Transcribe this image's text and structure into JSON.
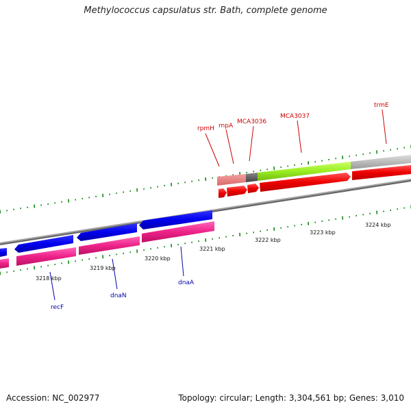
{
  "title": "Methylococcus capsulatus str. Bath, complete genome",
  "footer": {
    "accession": "Accession: NC_002977",
    "topology": "Topology: circular; Length: 3,304,561 bp; Genes: 3,010"
  },
  "kbp_labels": [
    "3218 kbp",
    "3219 kbp",
    "3220 kbp",
    "3221 kbp",
    "3222 kbp",
    "3223 kbp",
    "3224 kbp"
  ],
  "genes_top": [
    "rpmH",
    "rnpA",
    "MCA3036",
    "MCA3037",
    "trmE"
  ],
  "genes_bottom": [
    "recF",
    "dnaN",
    "dnaA"
  ],
  "colors": {
    "top_label": "#cc0000",
    "bottom_label": "#0000aa",
    "forward_cds": "#ff0000",
    "reverse_cds": "#0000ee",
    "reverse_secondary": "#ee2288",
    "highlight_green": "#99ee22",
    "grey_segment": "#bbbbbb",
    "tick": "#118811",
    "backbone": "#888888"
  }
}
